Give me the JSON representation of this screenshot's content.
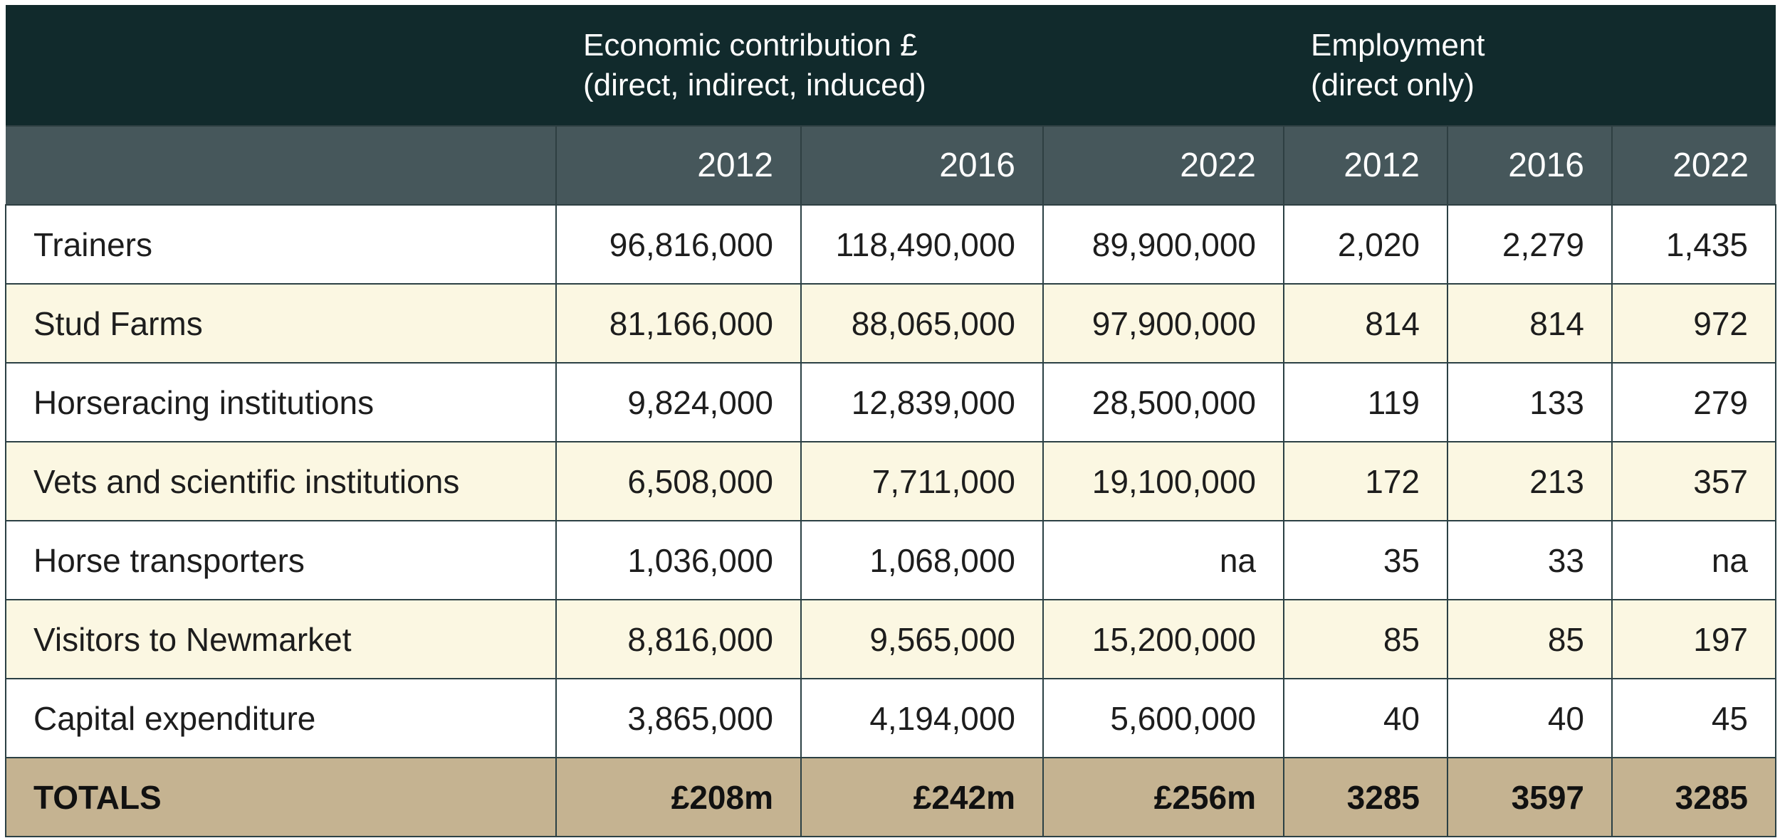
{
  "header": {
    "economic_line1": "Economic contribution £",
    "economic_line2": "(direct, indirect, induced)",
    "employment_line1": "Employment",
    "employment_line2": "(direct only)"
  },
  "years": [
    "2012",
    "2016",
    "2022",
    "2012",
    "2016",
    "2022"
  ],
  "rows": [
    {
      "label": "Trainers",
      "values": [
        "96,816,000",
        "118,490,000",
        "89,900,000",
        "2,020",
        "2,279",
        "1,435"
      ]
    },
    {
      "label": "Stud Farms",
      "values": [
        "81,166,000",
        "88,065,000",
        "97,900,000",
        "814",
        "814",
        "972"
      ]
    },
    {
      "label": "Horseracing institutions",
      "values": [
        "9,824,000",
        "12,839,000",
        "28,500,000",
        "119",
        "133",
        "279"
      ]
    },
    {
      "label": "Vets and scientific institutions",
      "values": [
        "6,508,000",
        "7,711,000",
        "19,100,000",
        "172",
        "213",
        "357"
      ]
    },
    {
      "label": "Horse transporters",
      "values": [
        "1,036,000",
        "1,068,000",
        "na",
        "35",
        "33",
        "na"
      ]
    },
    {
      "label": "Visitors to Newmarket",
      "values": [
        "8,816,000",
        "9,565,000",
        "15,200,000",
        "85",
        "85",
        "197"
      ]
    },
    {
      "label": "Capital expenditure",
      "values": [
        "3,865,000",
        "4,194,000",
        "5,600,000",
        "40",
        "40",
        "45"
      ]
    }
  ],
  "totals": {
    "label": "TOTALS",
    "values": [
      "£208m",
      "£242m",
      "£256m",
      "3285",
      "3597",
      "3285"
    ]
  },
  "colors": {
    "header_dark": "#112a2c",
    "header_year": "#46575b",
    "row_cream": "#fbf7e2",
    "totals_tan": "#c5b391"
  }
}
